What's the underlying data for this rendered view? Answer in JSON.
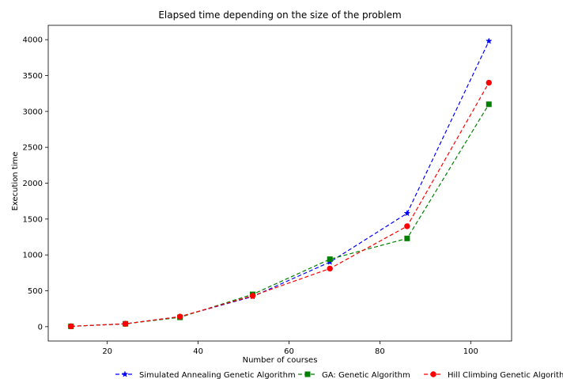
{
  "chart_data": {
    "type": "line",
    "title": "Elapsed time depending on the size of the problem",
    "xlabel": "Number of courses",
    "ylabel": "Execution time",
    "xlim": [
      7,
      109
    ],
    "ylim": [
      -200,
      4200
    ],
    "x_ticks": [
      20,
      40,
      60,
      80,
      100
    ],
    "y_ticks": [
      0,
      500,
      1000,
      1500,
      2000,
      2500,
      3000,
      3500,
      4000
    ],
    "grid": false,
    "legend_position": "bottom",
    "series": [
      {
        "name": "Simulated Annealing Genetic Algorithm",
        "color": "#0000ff",
        "line_style": "dashed",
        "marker": "star",
        "x": [
          12,
          24,
          36,
          52,
          69,
          86,
          104
        ],
        "y": [
          5,
          40,
          140,
          420,
          900,
          1580,
          3980
        ]
      },
      {
        "name": "GA: Genetic Algorithm",
        "color": "#008000",
        "line_style": "dashed",
        "marker": "square",
        "x": [
          12,
          24,
          36,
          52,
          69,
          86,
          104
        ],
        "y": [
          5,
          40,
          130,
          450,
          940,
          1230,
          3100
        ]
      },
      {
        "name": "Hill Climbing Genetic Algorithm",
        "color": "#ff0000",
        "line_style": "dashed",
        "marker": "circle",
        "x": [
          12,
          24,
          36,
          52,
          69,
          86,
          104
        ],
        "y": [
          5,
          40,
          140,
          430,
          810,
          1400,
          3400
        ]
      }
    ]
  }
}
